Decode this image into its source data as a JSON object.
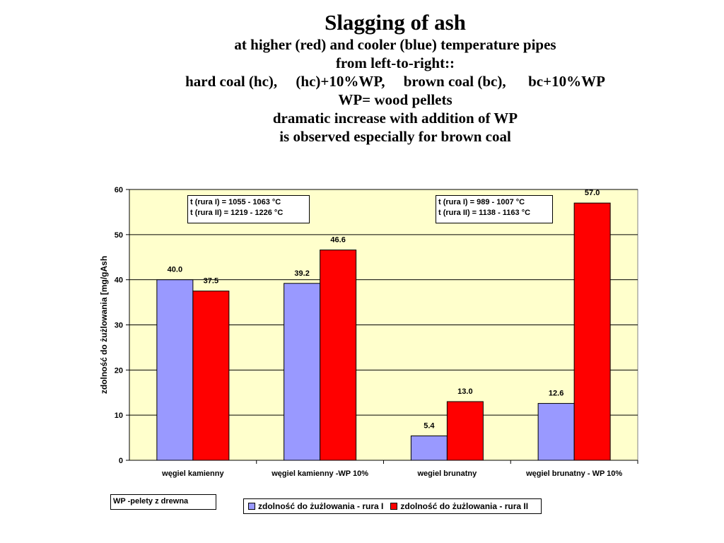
{
  "title": {
    "main": "Slagging of ash",
    "lines": [
      "at higher (red) and cooler (blue) temperature pipes",
      "from left-to-right::",
      "hard coal (hc),     (hc)+10%WP,     brown coal (bc),      bc+10%WP",
      "WP= wood pellets",
      "dramatic increase with addition of WP",
      "is observed especially for brown coal"
    ]
  },
  "annotations": {
    "box1": [
      "t (rura I)  = 1055 - 1063 °C",
      "t (rura II) = 1219 - 1226 °C"
    ],
    "box2": [
      "t (rura I)  = 989 - 1007 °C",
      "t (rura II) = 1138 - 1163 °C"
    ],
    "note": "WP -pelety z drewna"
  },
  "colors": {
    "rura_I": "#9999ff",
    "rura_II": "#ff0000",
    "plot_bg": "#ffffcc"
  },
  "chart_data": {
    "type": "bar",
    "ylabel": "zdolność do żużlowania  [mg/gAsh",
    "xlabel": "",
    "ylim": [
      0,
      60
    ],
    "yticks": [
      0,
      10,
      20,
      30,
      40,
      50,
      60
    ],
    "grid": true,
    "legend_position": "bottom",
    "categories": [
      "węgiel kamienny",
      "węgiel kamienny -WP 10%",
      "wegiel brunatny",
      "węgiel brunatny - WP 10%"
    ],
    "series": [
      {
        "name": "zdolność do żużlowania - rura I",
        "values": [
          40.0,
          39.2,
          5.4,
          12.6
        ],
        "labels": [
          "40.0",
          "39.2",
          "5.4",
          "12.6"
        ]
      },
      {
        "name": "zdolność do żużlowania - rura II",
        "values": [
          37.5,
          46.6,
          13.0,
          57.0
        ],
        "labels": [
          "37.5",
          "46.6",
          "13.0",
          "57.0"
        ]
      }
    ]
  }
}
